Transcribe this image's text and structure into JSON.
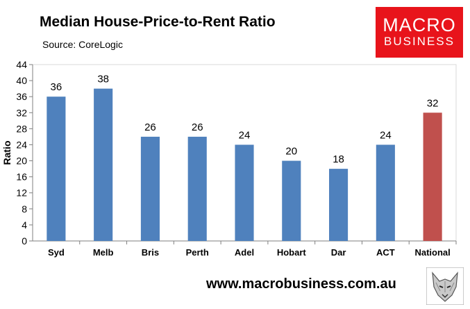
{
  "header": {
    "title": "Median House-Price-to-Rent Ratio",
    "source": "Source: CoreLogic"
  },
  "logo": {
    "line1": "MACRO",
    "line2": "BUSINESS",
    "color": "#e8141b"
  },
  "footer": {
    "url": "www.macrobusiness.com.au",
    "emblem_icon": "wolf-head-icon"
  },
  "chart_data": {
    "type": "bar",
    "categories": [
      "Syd",
      "Melb",
      "Bris",
      "Perth",
      "Adel",
      "Hobart",
      "Dar",
      "ACT",
      "National"
    ],
    "values": [
      36,
      38,
      26,
      26,
      24,
      20,
      18,
      24,
      32
    ],
    "data_labels": [
      "36",
      "38",
      "26",
      "26",
      "24",
      "20",
      "18",
      "24",
      "32"
    ],
    "ylabel": "Ratio",
    "ylim": [
      0,
      44
    ],
    "yticks": [
      0,
      4,
      8,
      12,
      16,
      20,
      24,
      28,
      32,
      36,
      40,
      44
    ],
    "grid": false,
    "bar_color": "#4f81bd",
    "highlight_color": "#c0504d",
    "highlight_category": "National"
  }
}
